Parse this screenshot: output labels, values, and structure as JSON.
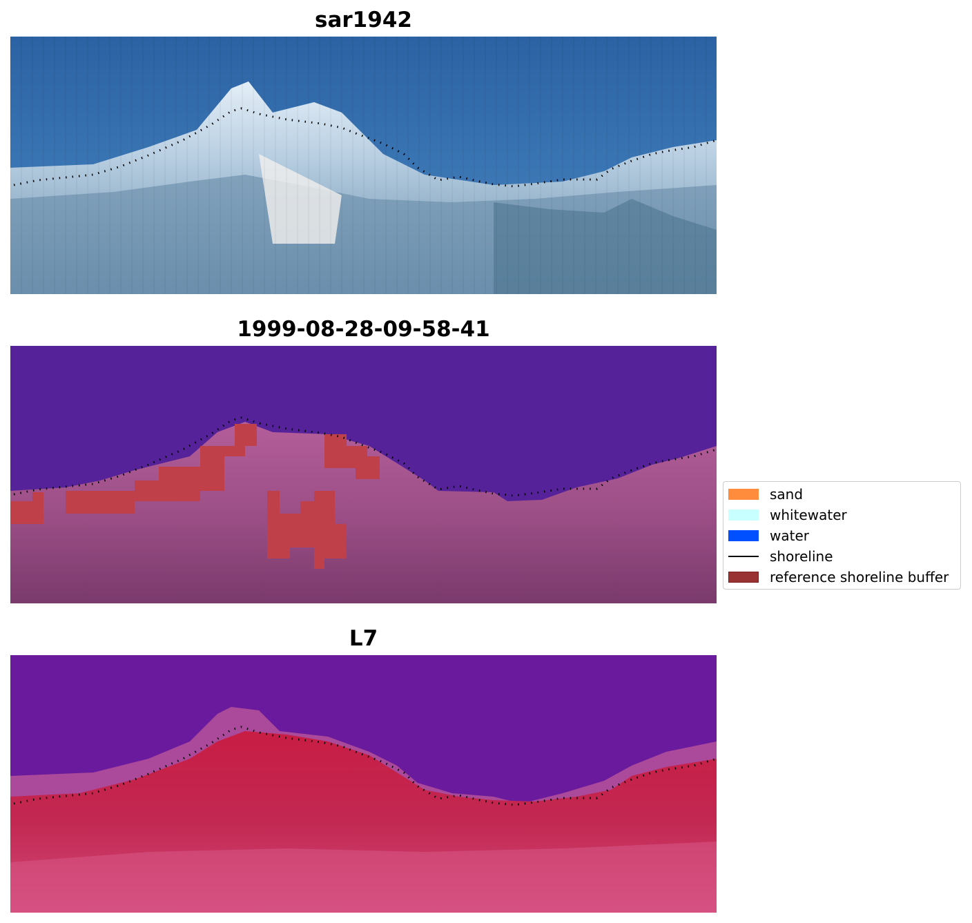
{
  "figure": {
    "panels": [
      {
        "id": "rgb",
        "title": "sar1942",
        "image": "rgb-satellite-coastline"
      },
      {
        "id": "classified",
        "title": "1999-08-28-09-58-41",
        "image": "classified-coastline-overlay"
      },
      {
        "id": "nir",
        "title": "L7",
        "image": "false-color-coastline"
      }
    ],
    "legend": {
      "items": [
        {
          "label": "sand",
          "type": "patch",
          "color": "#ff8c3c"
        },
        {
          "label": "whitewater",
          "type": "patch",
          "color": "#c8ffff"
        },
        {
          "label": "water",
          "type": "patch",
          "color": "#0050ff"
        },
        {
          "label": "shoreline",
          "type": "line",
          "color": "#000000"
        },
        {
          "label": "reference shoreline buffer",
          "type": "patch",
          "color": "#993333",
          "edge": "#7a1f1f"
        }
      ]
    },
    "colors": {
      "water_blue": "#2e67a6",
      "water_purple": "#552299",
      "land_magenta": "#a65890",
      "buffer_red": "#c0404a",
      "nir_water": "#6a1a9c",
      "nir_land": "#c41f48"
    }
  }
}
